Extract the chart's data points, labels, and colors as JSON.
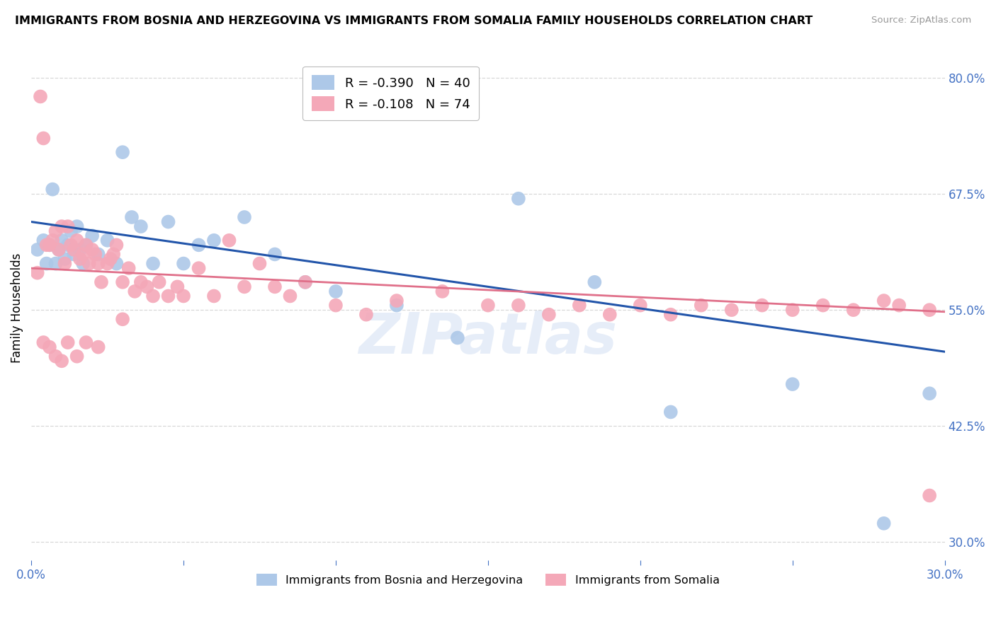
{
  "title": "IMMIGRANTS FROM BOSNIA AND HERZEGOVINA VS IMMIGRANTS FROM SOMALIA FAMILY HOUSEHOLDS CORRELATION CHART",
  "source": "Source: ZipAtlas.com",
  "ylabel": "Family Households",
  "legend_entries": [
    {
      "label": "R = -0.390   N = 40",
      "color": "#adc8e8"
    },
    {
      "label": "R = -0.108   N = 74",
      "color": "#f4a8b8"
    }
  ],
  "xlim": [
    0.0,
    0.3
  ],
  "ylim": [
    0.28,
    0.825
  ],
  "yticks": [
    0.3,
    0.425,
    0.55,
    0.675,
    0.8
  ],
  "ytick_labels": [
    "30.0%",
    "42.5%",
    "55.0%",
    "67.5%",
    "80.0%"
  ],
  "xticks": [
    0.0,
    0.05,
    0.1,
    0.15,
    0.2,
    0.25,
    0.3
  ],
  "xtick_labels": [
    "0.0%",
    "",
    "",
    "",
    "",
    "",
    "30.0%"
  ],
  "background_color": "#ffffff",
  "grid_color": "#d8d8d8",
  "tick_color": "#4472c4",
  "bosnia_color": "#adc8e8",
  "somalia_color": "#f4a8b8",
  "bosnia_line_color": "#2255aa",
  "somalia_line_color": "#e0708a",
  "watermark": "ZIPatlas",
  "bosnia_R": -0.39,
  "somalia_R": -0.108,
  "bosnia_line_x0": 0.0,
  "bosnia_line_y0": 0.645,
  "bosnia_line_x1": 0.3,
  "bosnia_line_y1": 0.505,
  "somalia_line_x0": 0.0,
  "somalia_line_y0": 0.595,
  "somalia_line_x1": 0.3,
  "somalia_line_y1": 0.548,
  "bosnia_points_x": [
    0.002,
    0.004,
    0.005,
    0.006,
    0.007,
    0.008,
    0.009,
    0.01,
    0.011,
    0.012,
    0.013,
    0.014,
    0.015,
    0.016,
    0.017,
    0.018,
    0.02,
    0.022,
    0.025,
    0.028,
    0.03,
    0.033,
    0.036,
    0.04,
    0.045,
    0.05,
    0.055,
    0.06,
    0.07,
    0.08,
    0.09,
    0.1,
    0.12,
    0.14,
    0.16,
    0.185,
    0.21,
    0.25,
    0.28,
    0.295
  ],
  "bosnia_points_y": [
    0.615,
    0.625,
    0.6,
    0.62,
    0.68,
    0.6,
    0.615,
    0.625,
    0.605,
    0.62,
    0.635,
    0.61,
    0.64,
    0.615,
    0.6,
    0.62,
    0.63,
    0.61,
    0.625,
    0.6,
    0.72,
    0.65,
    0.64,
    0.6,
    0.645,
    0.6,
    0.62,
    0.625,
    0.65,
    0.61,
    0.58,
    0.57,
    0.555,
    0.52,
    0.67,
    0.58,
    0.44,
    0.47,
    0.32,
    0.46
  ],
  "somalia_points_x": [
    0.002,
    0.003,
    0.004,
    0.005,
    0.006,
    0.007,
    0.008,
    0.009,
    0.01,
    0.011,
    0.012,
    0.013,
    0.014,
    0.015,
    0.016,
    0.017,
    0.018,
    0.019,
    0.02,
    0.021,
    0.022,
    0.023,
    0.025,
    0.026,
    0.027,
    0.028,
    0.03,
    0.032,
    0.034,
    0.036,
    0.038,
    0.04,
    0.042,
    0.045,
    0.048,
    0.05,
    0.055,
    0.06,
    0.065,
    0.07,
    0.075,
    0.08,
    0.085,
    0.09,
    0.1,
    0.11,
    0.12,
    0.135,
    0.15,
    0.16,
    0.17,
    0.18,
    0.19,
    0.2,
    0.21,
    0.22,
    0.23,
    0.24,
    0.25,
    0.26,
    0.27,
    0.28,
    0.285,
    0.295,
    0.004,
    0.006,
    0.008,
    0.01,
    0.012,
    0.015,
    0.018,
    0.022,
    0.03,
    0.295
  ],
  "somalia_points_y": [
    0.59,
    0.78,
    0.735,
    0.62,
    0.62,
    0.625,
    0.635,
    0.615,
    0.64,
    0.6,
    0.64,
    0.62,
    0.615,
    0.625,
    0.605,
    0.61,
    0.62,
    0.6,
    0.615,
    0.61,
    0.6,
    0.58,
    0.6,
    0.605,
    0.61,
    0.62,
    0.58,
    0.595,
    0.57,
    0.58,
    0.575,
    0.565,
    0.58,
    0.565,
    0.575,
    0.565,
    0.595,
    0.565,
    0.625,
    0.575,
    0.6,
    0.575,
    0.565,
    0.58,
    0.555,
    0.545,
    0.56,
    0.57,
    0.555,
    0.555,
    0.545,
    0.555,
    0.545,
    0.555,
    0.545,
    0.555,
    0.55,
    0.555,
    0.55,
    0.555,
    0.55,
    0.56,
    0.555,
    0.55,
    0.515,
    0.51,
    0.5,
    0.495,
    0.515,
    0.5,
    0.515,
    0.51,
    0.54,
    0.35
  ]
}
